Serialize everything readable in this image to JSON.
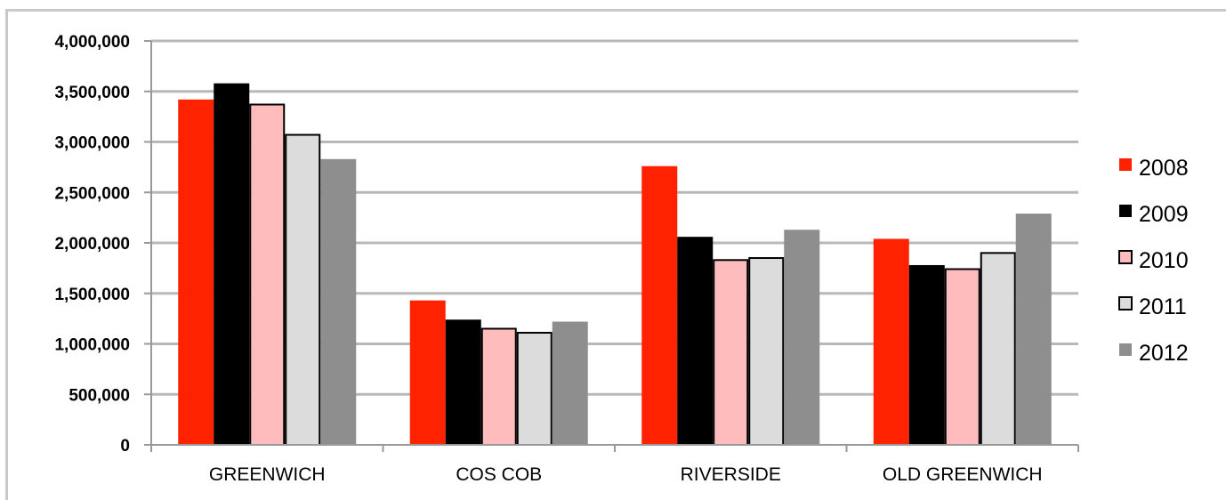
{
  "chart_data": {
    "type": "bar",
    "title": "",
    "xlabel": "",
    "ylabel": "",
    "categories": [
      "GREENWICH",
      "COS COB",
      "RIVERSIDE",
      "OLD GREENWICH"
    ],
    "series": [
      {
        "name": "2008",
        "color": "#ff2200",
        "outline": "none",
        "values": [
          3420000,
          1430000,
          2760000,
          2040000
        ]
      },
      {
        "name": "2009",
        "color": "#000000",
        "outline": "none",
        "values": [
          3580000,
          1240000,
          2060000,
          1780000
        ]
      },
      {
        "name": "2010",
        "color": "#ffbcbc",
        "outline": "#000000",
        "values": [
          3370000,
          1150000,
          1830000,
          1740000
        ]
      },
      {
        "name": "2011",
        "color": "#dcdcdc",
        "outline": "#000000",
        "values": [
          3070000,
          1110000,
          1850000,
          1900000
        ]
      },
      {
        "name": "2012",
        "color": "#8e8e8e",
        "outline": "none",
        "values": [
          2830000,
          1220000,
          2130000,
          2290000
        ]
      }
    ],
    "ylim": [
      0,
      4000000
    ],
    "yticks": [
      0,
      500000,
      1000000,
      1500000,
      2000000,
      2500000,
      3000000,
      3500000,
      4000000
    ],
    "ytick_labels": [
      "0",
      "500,000",
      "1,000,000",
      "1,500,000",
      "2,000,000",
      "2,500,000",
      "3,000,000",
      "3,500,000",
      "4,000,000"
    ],
    "grid": true,
    "gridline_color": "#b8b8b8",
    "legend_position": "right"
  }
}
